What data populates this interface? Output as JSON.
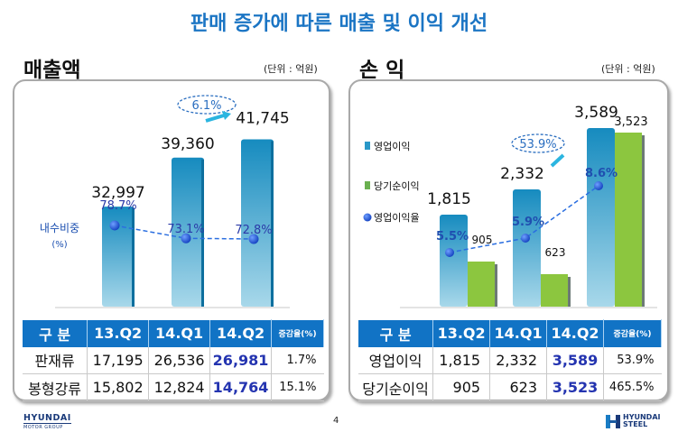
{
  "header": {
    "title": "판매 증가에 따른 매출 및 이익 개선"
  },
  "footer": {
    "page_number": "4",
    "left_logo": {
      "line1": "HYUNDAI",
      "line2": "MOTOR GROUP"
    },
    "right_logo": {
      "line1": "HYUNDAI",
      "line2": "STEEL"
    }
  },
  "chart_data": [
    {
      "type": "bar",
      "title": "매출액",
      "unit": "(단위 : 억원)",
      "categories": [
        "13.Q2",
        "14.Q1",
        "14.Q2"
      ],
      "series": [
        {
          "name": "매출액",
          "values": [
            32997,
            39360,
            41745
          ],
          "labels": [
            "32,997",
            "39,360",
            "41,745"
          ],
          "color": "#1a8fc4"
        }
      ],
      "line_series": {
        "name": "내수비중 (%)",
        "label_line1": "내수비중",
        "label_line2": "(%)",
        "values": [
          78.7,
          73.1,
          72.8
        ],
        "labels": [
          "78.7%",
          "73.1%",
          "72.8%"
        ],
        "color": "#2a5fd6"
      },
      "callout": {
        "text": "6.1%",
        "from": "14.Q1",
        "to": "14.Q2"
      },
      "ylim": [
        0,
        45000
      ],
      "xlabel": "",
      "ylabel": "",
      "grid": false
    },
    {
      "type": "bar",
      "title": "손 익",
      "unit": "(단위 : 억원)",
      "categories": [
        "13.Q2",
        "14.Q1",
        "14.Q2"
      ],
      "series": [
        {
          "name": "영업이익",
          "values": [
            1815,
            2332,
            3589
          ],
          "labels": [
            "1,815",
            "2,332",
            "3,589"
          ],
          "color": "#1a8fc4"
        },
        {
          "name": "당기순이익",
          "values": [
            905,
            623,
            3523
          ],
          "labels": [
            "905",
            "623",
            "3,523"
          ],
          "color": "#8cc63f"
        }
      ],
      "line_series": {
        "name": "영업이익율",
        "values": [
          5.5,
          5.9,
          8.6
        ],
        "labels": [
          "5.5%",
          "5.9%",
          "8.6%"
        ],
        "color": "#2a5fd6"
      },
      "legend": [
        "영업이익",
        "당기순이익",
        "영업이익율"
      ],
      "legend_position": "left",
      "callout": {
        "text": "53.9%",
        "from": "14.Q1",
        "to": "14.Q2"
      },
      "ylim": [
        0,
        4000
      ],
      "xlabel": "",
      "ylabel": "",
      "grid": false
    }
  ],
  "tables": {
    "sales": {
      "headers": [
        "구  분",
        "13.Q2",
        "14.Q1",
        "14.Q2",
        "증감율(%)"
      ],
      "rows": [
        [
          "판재류",
          "17,195",
          "26,536",
          "26,981",
          "1.7%"
        ],
        [
          "봉형강류",
          "15,802",
          "12,824",
          "14,764",
          "15.1%"
        ]
      ]
    },
    "profit": {
      "headers": [
        "구  분",
        "13.Q2",
        "14.Q1",
        "14.Q2",
        "증감율(%)"
      ],
      "rows": [
        [
          "영업이익",
          "1,815",
          "2,332",
          "3,589",
          "53.9%"
        ],
        [
          "당기순이익",
          "905",
          "623",
          "3,523",
          "465.5%"
        ]
      ]
    }
  }
}
